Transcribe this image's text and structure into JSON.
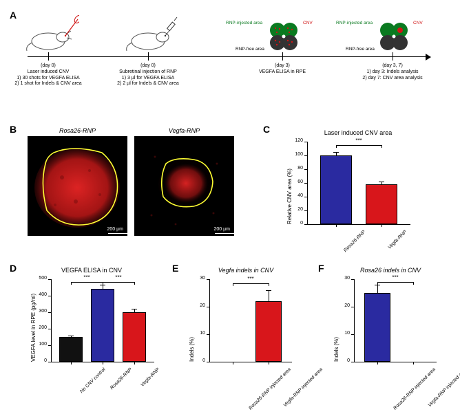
{
  "labels": {
    "A": "A",
    "B": "B",
    "C": "C",
    "D": "D",
    "E": "E",
    "F": "F"
  },
  "timeline": {
    "steps": [
      {
        "day": "(day 0)",
        "title": "Laser induced CNV",
        "lines": [
          "1) 30 shots for VEGFA ELISA",
          "2) 1 shot for Indels & CNV area"
        ]
      },
      {
        "day": "(day 0)",
        "title": "Subretinal injection of RNP",
        "lines": [
          "1) 3 µl for VEGFA ELISA",
          "2) 2 µl for Indels & CNV area"
        ]
      },
      {
        "day": "(day 3)",
        "title": "VEGFA ELISA in RPE",
        "lines": []
      },
      {
        "day": "(day 3, 7)",
        "title": "",
        "lines": [
          "1) day 3: Indels analysis",
          "2) day 7: CNV area analysis"
        ]
      }
    ],
    "clover_labels": {
      "rnp_injected": "RNP-injected area",
      "rnp_free": "RNP-free area",
      "cnv": "CNV"
    }
  },
  "panel_B": {
    "left_title": "Rosa26-RNP",
    "right_title": "Vegfa-RNP",
    "scalebar": "200 µm",
    "outline_color": "#ffff33"
  },
  "panel_C": {
    "title": "Laser induced CNV area",
    "ylabel": "Relative CNV area (%)",
    "ylim": [
      0,
      120
    ],
    "ytick_step": 20,
    "categories": [
      "Rosa26-RNP",
      "Vegfa-RNP"
    ],
    "values": [
      100,
      58
    ],
    "errors": [
      5,
      4
    ],
    "colors": [
      "#2a2aa0",
      "#d8161b"
    ],
    "sig_label": "***",
    "sig_between": [
      0,
      1
    ]
  },
  "panel_D": {
    "title": "VEGFA ELISA in CNV",
    "ylabel": "VEGFA level in RPE (pg/ml)",
    "ylim": [
      0,
      500
    ],
    "ytick_step": 100,
    "categories": [
      "No CNV control",
      "Rosa26-RNP",
      "Vegfa-RNP"
    ],
    "values": [
      148,
      440,
      300
    ],
    "errors": [
      10,
      28,
      22
    ],
    "colors": [
      "#111111",
      "#2a2aa0",
      "#d8161b"
    ],
    "sig": [
      {
        "between": [
          0,
          1
        ],
        "label": "***"
      },
      {
        "between": [
          1,
          2
        ],
        "label": "***"
      }
    ]
  },
  "panel_E": {
    "title": "Vegfa indels in CNV",
    "ylabel": "Indels (%)",
    "ylim": [
      0,
      30
    ],
    "ytick_step": 10,
    "categories": [
      "Rosa26-RNP injected area",
      "Vegfa-RNP injected area"
    ],
    "values": [
      0,
      22
    ],
    "errors": [
      0,
      4
    ],
    "colors": [
      "#2a2aa0",
      "#d8161b"
    ],
    "sig_label": "***",
    "sig_between": [
      0,
      1
    ]
  },
  "panel_F": {
    "title": "Rosa26 indels in CNV",
    "ylabel": "Indels (%)",
    "ylim": [
      0,
      30
    ],
    "ytick_step": 10,
    "categories": [
      "Rosa26-RNP injected area",
      "Vegfa-RNP injected area"
    ],
    "values": [
      25,
      0
    ],
    "errors": [
      3,
      0
    ],
    "colors": [
      "#2a2aa0",
      "#d8161b"
    ],
    "sig_label": "***",
    "sig_between": [
      0,
      1
    ]
  },
  "style": {
    "bg": "#ffffff",
    "axis_color": "#000000",
    "text_color": "#000000",
    "micro_red": "#d01515",
    "micro_red_dark": "#701010",
    "green": "#0a7a20",
    "red": "#d01515"
  }
}
